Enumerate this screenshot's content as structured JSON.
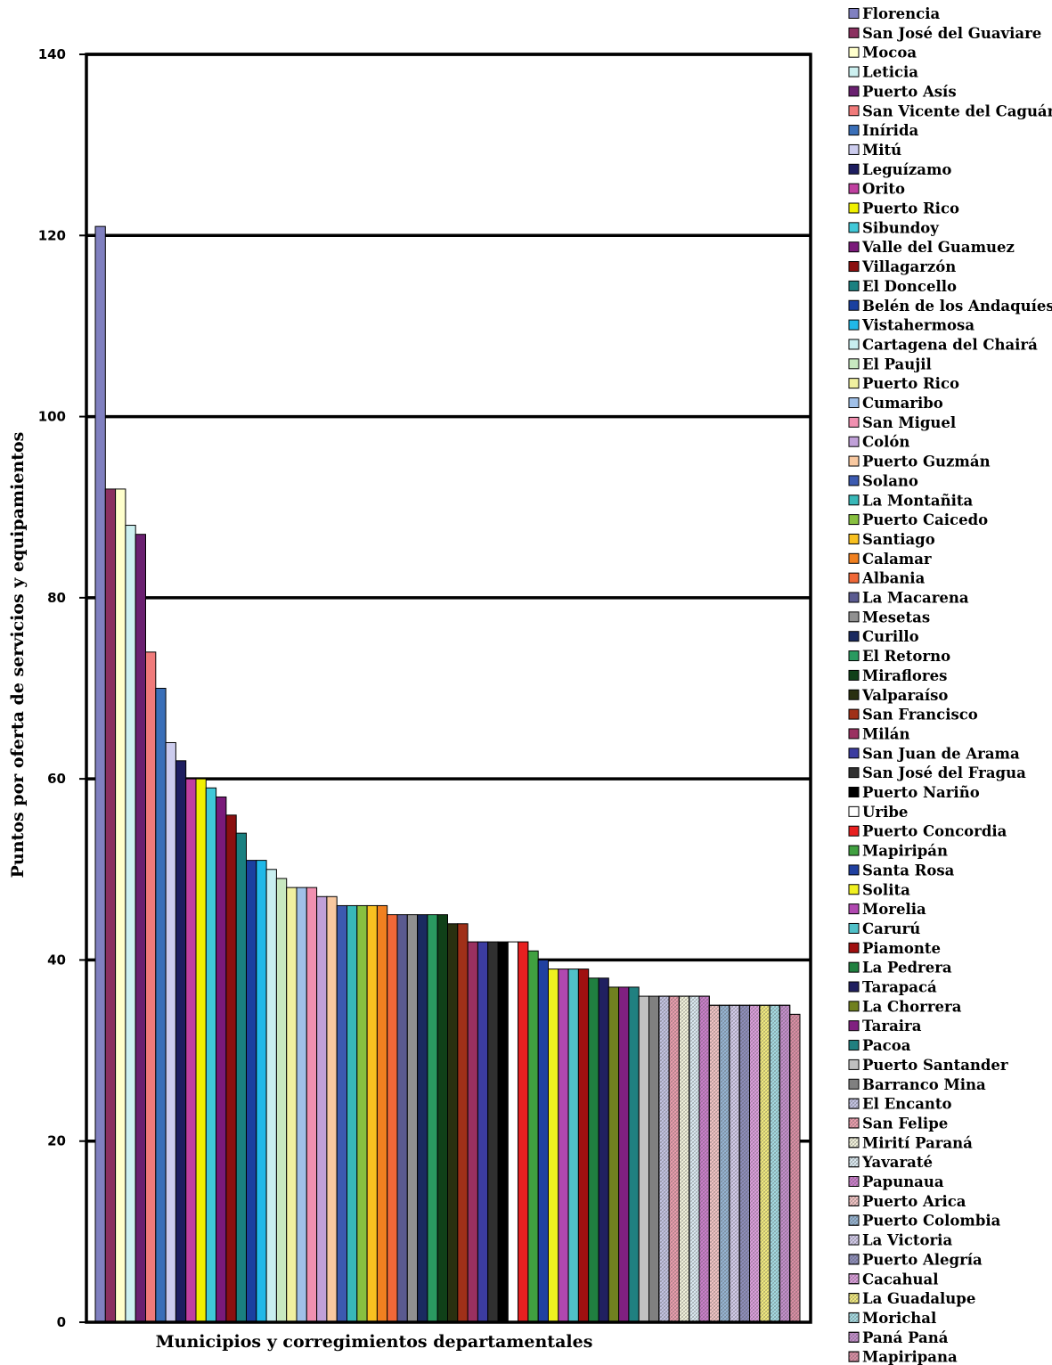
{
  "chart_data": {
    "type": "bar",
    "title": "",
    "xlabel": "Municipios y corregimientos departamentales",
    "ylabel": "Puntos por oferta de servicios y equipamientos",
    "ylim": [
      0,
      140
    ],
    "yticks": [
      0,
      20,
      40,
      60,
      80,
      100,
      120,
      140
    ],
    "grid": true,
    "legend_position": "right",
    "categories": [
      "Florencia",
      "San José del Guaviare",
      "Mocoa",
      "Leticia",
      "Puerto Asís",
      "San Vicente del Caguán",
      "Inírida",
      "Mitú",
      "Leguízamo",
      "Orito",
      "Puerto Rico",
      "Sibundoy",
      "Valle del Guamuez",
      "Villagarzón",
      "El Doncello",
      "Belén de los Andaquíes",
      "Vistahermosa",
      "Cartagena del Chairá",
      "El Paujil",
      "Puerto Rico",
      "Cumaribo",
      "San Miguel",
      "Colón",
      "Puerto Guzmán",
      "Solano",
      "La Montañita",
      "Puerto Caicedo",
      "Santiago",
      "Calamar",
      "Albania",
      "La Macarena",
      "Mesetas",
      "Curillo",
      "El Retorno",
      "Miraflores",
      "Valparaíso",
      "San Francisco",
      "Milán",
      "San Juan de Arama",
      "San José del Fragua",
      "Puerto Nariño",
      "Uribe",
      "Puerto Concordia",
      "Mapiripán",
      "Santa Rosa",
      "Solita",
      "Morelia",
      "Carurú",
      "Piamonte",
      "La Pedrera",
      "Tarapacá",
      "La Chorrera",
      "Taraira",
      "Pacoa",
      "Puerto Santander",
      "Barranco Mina",
      "El Encanto",
      "San Felipe",
      "Mirití Paraná",
      "Yavaraté",
      "Papunaua",
      "Puerto Arica",
      "Puerto Colombia",
      "La Victoria",
      "Puerto Alegría",
      "Cacahual",
      "La Guadalupe",
      "Morichal",
      "Paná Paná",
      "Mapiripana"
    ],
    "values": [
      121,
      92,
      92,
      88,
      87,
      74,
      70,
      64,
      62,
      60,
      60,
      59,
      58,
      56,
      54,
      51,
      51,
      50,
      49,
      48,
      48,
      48,
      47,
      47,
      46,
      46,
      46,
      46,
      46,
      45,
      45,
      45,
      45,
      45,
      45,
      44,
      44,
      42,
      42,
      42,
      42,
      42,
      42,
      41,
      40,
      39,
      39,
      39,
      39,
      38,
      38,
      37,
      37,
      37,
      36,
      36,
      36,
      36,
      36,
      36,
      36,
      35,
      35,
      35,
      35,
      35,
      35,
      35,
      35,
      34
    ],
    "colors": [
      "#8080c0",
      "#8b3060",
      "#ffffcc",
      "#ccf0f0",
      "#6a2070",
      "#f07a7a",
      "#3a6fb8",
      "#ccccee",
      "#1e1e60",
      "#c040a0",
      "#f0f000",
      "#40c8d8",
      "#7a1a7a",
      "#8b1010",
      "#1a8080",
      "#1a40a0",
      "#20b8e8",
      "#c8eef0",
      "#c8e8c0",
      "#f0f0a0",
      "#a0c0e8",
      "#f090b0",
      "#c0a0d8",
      "#f8c8a0",
      "#3c5ab0",
      "#38b8b8",
      "#88c040",
      "#f8c020",
      "#f08020",
      "#f06838",
      "#5a5a90",
      "#909090",
      "#1a2a60",
      "#2a9a60",
      "#104018",
      "#2a3010",
      "#a03018",
      "#9a3060",
      "#3c3ca0",
      "#303030",
      "#000000",
      "#ffffff",
      "#e82020",
      "#40a040",
      "#2040a0",
      "#f0f020",
      "#b048b0",
      "#50c0c8",
      "#a01010",
      "#208040",
      "#202060",
      "#708020",
      "#802080",
      "#208080",
      "#c0c0c0",
      "#808080",
      "#c8c8e8",
      "#f0a0b0",
      "#f8f8e0",
      "#e0f0f8",
      "#d080d0",
      "#f8c8c8",
      "#98b8d8",
      "#d8d0f0",
      "#9090c0",
      "#e0a0e0",
      "#f8f080",
      "#a8e0e8",
      "#c890d0",
      "#e090a8"
    ],
    "patterns": [
      false,
      false,
      false,
      false,
      false,
      false,
      false,
      false,
      false,
      false,
      false,
      false,
      false,
      false,
      false,
      false,
      false,
      false,
      false,
      false,
      false,
      false,
      false,
      false,
      false,
      false,
      false,
      false,
      false,
      false,
      false,
      false,
      false,
      false,
      false,
      false,
      false,
      false,
      false,
      false,
      false,
      false,
      false,
      false,
      false,
      false,
      false,
      false,
      false,
      false,
      false,
      false,
      false,
      false,
      false,
      false,
      true,
      true,
      true,
      true,
      true,
      true,
      true,
      true,
      true,
      true,
      true,
      true,
      true,
      true
    ]
  }
}
